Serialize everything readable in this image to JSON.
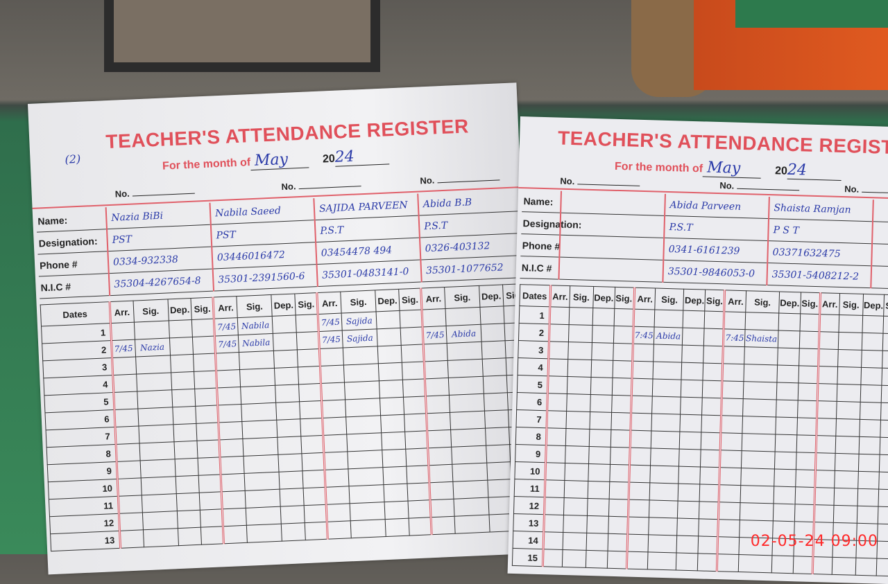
{
  "timestamp": "02-05-24 09:00",
  "left_page": {
    "page_number": "(2)",
    "title": "TEACHER'S ATTENDANCE REGISTER",
    "month_label": "For the month of",
    "month": "May",
    "year_prefix": "20",
    "year_suffix": "24",
    "no_label": "No.",
    "field_labels": [
      "Name:",
      "Designation:",
      "Phone #",
      "N.I.C #"
    ],
    "dates_label": "Dates",
    "column_labels": [
      "Arr.",
      "Sig.",
      "Dep.",
      "Sig."
    ],
    "teachers": [
      {
        "name": "Nazia BiBi",
        "designation": "PST",
        "phone": "0334-932338",
        "nic": "35304-4267654-8"
      },
      {
        "name": "Nabila Saeed",
        "designation": "PST",
        "phone": "03446016472",
        "nic": "35301-2391560-6"
      },
      {
        "name": "SAJIDA PARVEEN",
        "designation": "P.S.T",
        "phone": "03454478 494",
        "nic": "35301-0483141-0"
      },
      {
        "name": "Abida B.B",
        "designation": "P.S.T",
        "phone": "0326-403132",
        "nic": "35301-1077652"
      }
    ],
    "dates": [
      "1",
      "2",
      "3",
      "4",
      "5",
      "6",
      "7",
      "8",
      "9",
      "10",
      "11",
      "12",
      "13"
    ],
    "entries": [
      {
        "date": "1",
        "teacher": 1,
        "arr": "7/45",
        "sig": "Nabila"
      },
      {
        "date": "1",
        "teacher": 2,
        "arr": "7/45",
        "sig": "Sajida"
      },
      {
        "date": "2",
        "teacher": 0,
        "arr": "7/45",
        "sig": "Nazia"
      },
      {
        "date": "2",
        "teacher": 1,
        "arr": "7/45",
        "sig": "Nabila"
      },
      {
        "date": "2",
        "teacher": 2,
        "arr": "7/45",
        "sig": "Sajida"
      },
      {
        "date": "2",
        "teacher": 3,
        "arr": "7/45",
        "sig": "Abida"
      }
    ]
  },
  "right_page": {
    "title": "TEACHER'S ATTENDANCE REGISTE",
    "month_label": "For the month of",
    "month": "May",
    "year_prefix": "20",
    "year_suffix": "24",
    "no_label": "No.",
    "field_labels": [
      "Name:",
      "Designation:",
      "Phone #",
      "N.I.C #"
    ],
    "dates_label": "Dates",
    "column_labels": [
      "Arr.",
      "Sig.",
      "Dep.",
      "Sig."
    ],
    "teachers": [
      {
        "name": "",
        "designation": "",
        "phone": "",
        "nic": ""
      },
      {
        "name": "Abida Parveen",
        "designation": "P.S.T",
        "phone": "0341-6161239",
        "nic": "35301-9846053-0"
      },
      {
        "name": "Shaista Ramjan",
        "designation": "P S T",
        "phone": "03371632475",
        "nic": "35301-5408212-2"
      },
      {
        "name": "",
        "designation": "",
        "phone": "",
        "nic": ""
      }
    ],
    "dates": [
      "1",
      "2",
      "3",
      "4",
      "5",
      "6",
      "7",
      "8",
      "9",
      "10",
      "11",
      "12",
      "13",
      "14",
      "15"
    ],
    "entries": [
      {
        "date": "2",
        "teacher": 1,
        "arr": "7:45",
        "sig": "Abida"
      },
      {
        "date": "2",
        "teacher": 2,
        "arr": "7:45",
        "sig": "Shaista"
      }
    ]
  }
}
